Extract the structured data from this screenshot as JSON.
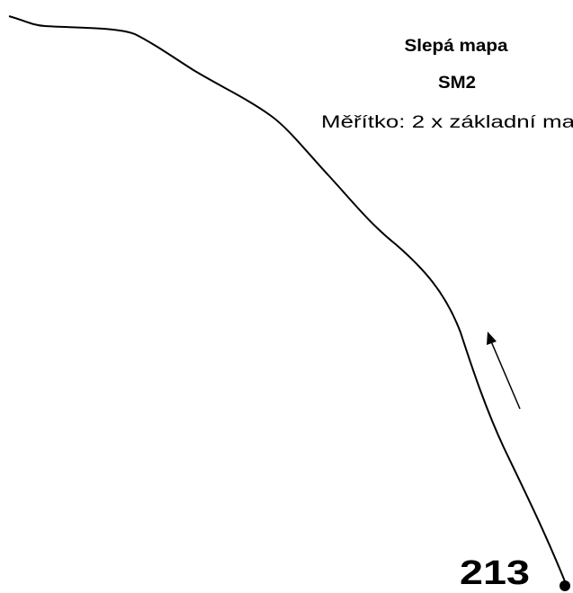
{
  "title": "Slepá mapa",
  "code": "SM2",
  "scale": "Měřítko: 2 x základní ma",
  "point_label": "213"
}
